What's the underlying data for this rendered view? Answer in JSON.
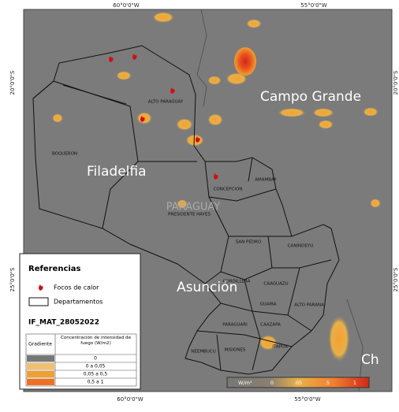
{
  "map": {
    "coords": {
      "top": [
        "60°0'0\"W",
        "55°0'0\"W"
      ],
      "bottom": [
        "60°0'0\"W",
        "55°0'0\"W"
      ],
      "left": [
        "20°0'0\"S",
        "25°0'0\"S"
      ],
      "right": [
        "20°0'0\"S",
        "25°0'0\"S"
      ]
    },
    "cities": [
      "Campo Grande",
      "Filadelfia",
      "Asunción",
      "Ch"
    ],
    "country": "PARAGUAY",
    "departments": [
      "ALTO PARAGUAY",
      "BOQUERON",
      "CONCEPCION",
      "AMAMBAY",
      "PRESIDENTE HAYES",
      "SAN PEDRO",
      "CANINDEYU",
      "CORDILLERA",
      "CAAGUAZU",
      "GUAIRA",
      "ALTO PARANA",
      "PARAGUARI",
      "CAAZAPA",
      "ITAPUA",
      "NEEMBUCU",
      "MISIONES"
    ],
    "colorbar": {
      "unit": "W/m²",
      "labels": [
        "0",
        ".05",
        ".5",
        "1"
      ]
    }
  },
  "legend": {
    "title": "Referencias",
    "items": [
      "Focos de calor",
      "Departamentos"
    ],
    "layer": "IF_MAT_28052022",
    "table": {
      "header": [
        "Gradiente",
        "Concentración de intensidad de fuego (W/m2)"
      ],
      "rows": [
        "0",
        "0 a 0,05",
        "0,05 a 0,5",
        "0,5 a 1"
      ]
    }
  }
}
